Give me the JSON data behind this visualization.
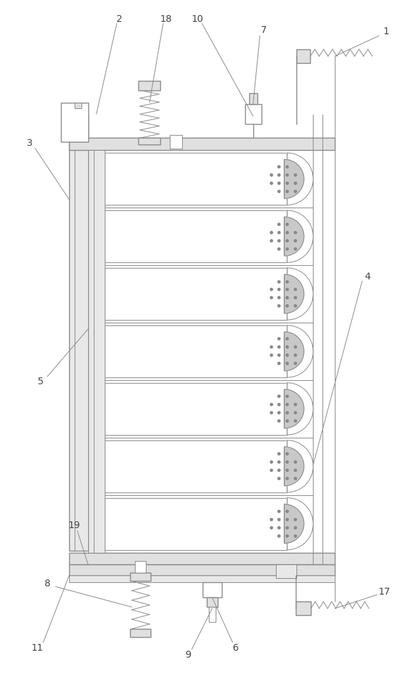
{
  "bg_color": "#ffffff",
  "lc": "#888888",
  "lc2": "#aaaaaa",
  "num_trays": 7,
  "fig_width": 5.93,
  "fig_height": 10.0,
  "label_color": "#444444",
  "label_fontsize": 10
}
